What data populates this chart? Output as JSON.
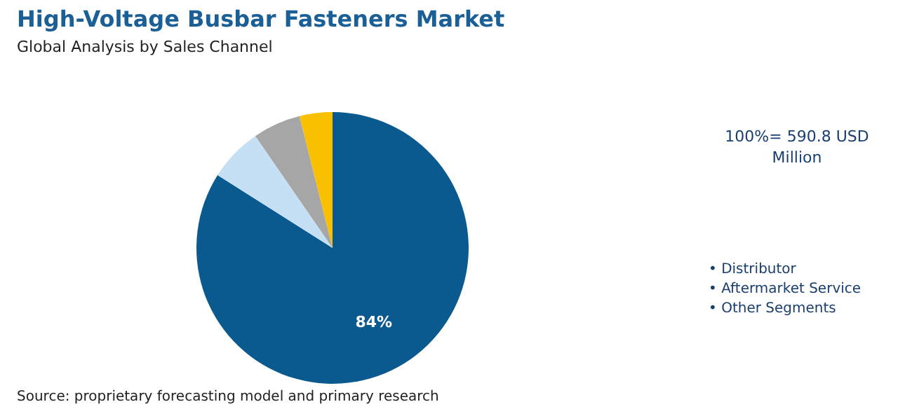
{
  "chart_data": {
    "type": "pie",
    "title": "High-Voltage Busbar Fasteners Market",
    "subtitle": "Global Analysis by Sales Channel",
    "categories": [
      null,
      null,
      null,
      null
    ],
    "values": [
      84,
      6.4,
      5.7,
      3.9
    ],
    "colors": [
      "#0b5a8f",
      "#c5e0f4",
      "#a6a6a6",
      "#f9c000"
    ],
    "value_labels": [
      "84%",
      null,
      null,
      null
    ],
    "annotations": [
      "100%= 590.8 USD Million",
      "• Distributor",
      "• Aftermarket Service",
      "• Other Segments",
      "Source: proprietary forecasting model and primary research"
    ]
  }
}
